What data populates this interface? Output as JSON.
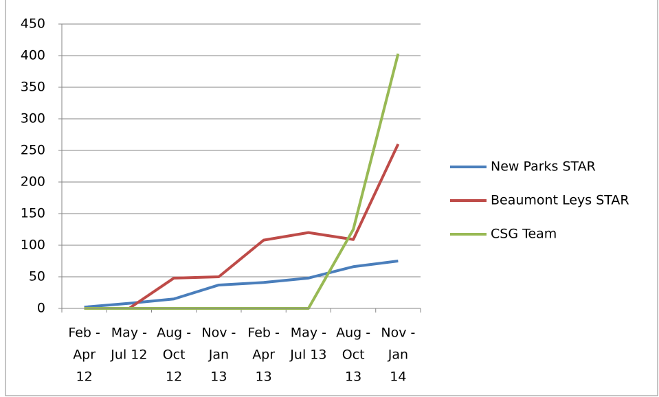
{
  "chart_data": {
    "type": "line",
    "categories": [
      [
        "Feb -",
        "Apr",
        "12"
      ],
      [
        "May -",
        "Jul 12"
      ],
      [
        "Aug -",
        "Oct",
        "12"
      ],
      [
        "Nov -",
        "Jan",
        "13"
      ],
      [
        "Feb -",
        "Apr",
        "13"
      ],
      [
        "May -",
        "Jul 13"
      ],
      [
        "Aug -",
        "Oct",
        "13"
      ],
      [
        "Nov -",
        "Jan",
        "14"
      ]
    ],
    "series": [
      {
        "name": "New Parks STAR",
        "color": "#4a7ebb",
        "values": [
          2,
          8,
          15,
          37,
          41,
          48,
          66,
          75
        ]
      },
      {
        "name": "Beaumont Leys STAR",
        "color": "#be4b48",
        "values": [
          0,
          0,
          48,
          50,
          108,
          120,
          109,
          260
        ]
      },
      {
        "name": "CSG Team",
        "color": "#98b954",
        "values": [
          0,
          0,
          0,
          0,
          0,
          0,
          125,
          403
        ]
      }
    ],
    "ylim": [
      0,
      450
    ],
    "yticks": [
      0,
      50,
      100,
      150,
      200,
      250,
      300,
      350,
      400,
      450
    ],
    "grid": true,
    "legend": "right"
  }
}
